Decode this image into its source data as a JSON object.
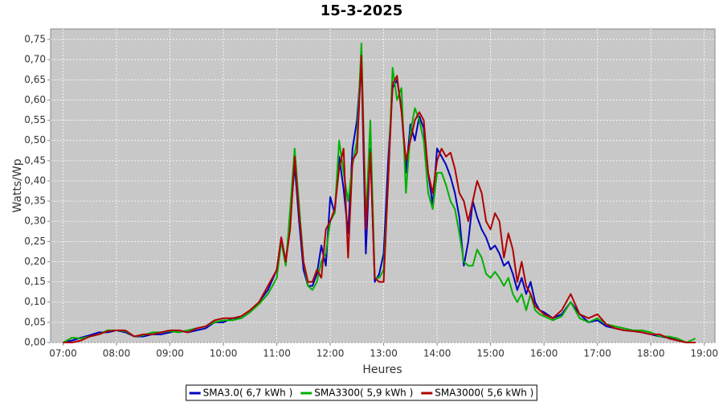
{
  "chart_data": {
    "type": "line",
    "title": "15-3-2025",
    "y_label": "Watts/Wp",
    "x_label": "Heures",
    "grid": true,
    "legend": "bottom",
    "xlim": [
      406,
      1152
    ],
    "ylim": [
      0,
      0.776
    ],
    "xticks": [
      {
        "value": 420,
        "label": "07:00"
      },
      {
        "value": 480,
        "label": "08:00"
      },
      {
        "value": 540,
        "label": "09:00"
      },
      {
        "value": 600,
        "label": "10:00"
      },
      {
        "value": 660,
        "label": "11:00"
      },
      {
        "value": 720,
        "label": "12:00"
      },
      {
        "value": 780,
        "label": "13:00"
      },
      {
        "value": 840,
        "label": "14:00"
      },
      {
        "value": 900,
        "label": "15:00"
      },
      {
        "value": 960,
        "label": "16:00"
      },
      {
        "value": 1020,
        "label": "17:00"
      },
      {
        "value": 1080,
        "label": "18:00"
      },
      {
        "value": 1140,
        "label": "19:00"
      }
    ],
    "yticks": [
      {
        "value": 0,
        "label": "0,00"
      },
      {
        "value": 0.05,
        "label": "0,05"
      },
      {
        "value": 0.1,
        "label": "0,10"
      },
      {
        "value": 0.15,
        "label": "0,15"
      },
      {
        "value": 0.2,
        "label": "0,20"
      },
      {
        "value": 0.25,
        "label": "0,25"
      },
      {
        "value": 0.3,
        "label": "0,30"
      },
      {
        "value": 0.35,
        "label": "0,35"
      },
      {
        "value": 0.4,
        "label": "0,40"
      },
      {
        "value": 0.45,
        "label": "0,45"
      },
      {
        "value": 0.5,
        "label": "0,50"
      },
      {
        "value": 0.55,
        "label": "0,55"
      },
      {
        "value": 0.6,
        "label": "0,60"
      },
      {
        "value": 0.65,
        "label": "0,65"
      },
      {
        "value": 0.7,
        "label": "0,70"
      },
      {
        "value": 0.75,
        "label": "0,75"
      }
    ],
    "x": [
      420,
      430,
      440,
      450,
      460,
      470,
      480,
      490,
      500,
      510,
      520,
      530,
      540,
      550,
      560,
      570,
      580,
      590,
      600,
      610,
      620,
      630,
      640,
      650,
      660,
      665,
      670,
      675,
      680,
      685,
      690,
      695,
      700,
      705,
      710,
      715,
      720,
      725,
      730,
      735,
      740,
      745,
      750,
      755,
      760,
      765,
      770,
      775,
      780,
      785,
      790,
      795,
      800,
      805,
      810,
      815,
      820,
      825,
      830,
      835,
      840,
      845,
      850,
      855,
      860,
      865,
      870,
      875,
      880,
      885,
      890,
      895,
      900,
      905,
      910,
      915,
      920,
      925,
      930,
      935,
      940,
      945,
      950,
      955,
      960,
      970,
      980,
      990,
      1000,
      1010,
      1020,
      1030,
      1040,
      1050,
      1060,
      1070,
      1080,
      1090,
      1100,
      1110,
      1120,
      1130
    ],
    "series": [
      {
        "name": "SMA3.0( 6,7 kWh )",
        "color": "#0000c0",
        "values": [
          0,
          0.005,
          0.012,
          0.018,
          0.025,
          0.025,
          0.03,
          0.025,
          0.015,
          0.015,
          0.02,
          0.02,
          0.025,
          0.03,
          0.025,
          0.03,
          0.035,
          0.05,
          0.05,
          0.06,
          0.06,
          0.075,
          0.1,
          0.13,
          0.18,
          0.26,
          0.2,
          0.3,
          0.44,
          0.3,
          0.18,
          0.14,
          0.14,
          0.17,
          0.24,
          0.19,
          0.36,
          0.32,
          0.46,
          0.38,
          0.27,
          0.48,
          0.55,
          0.7,
          0.22,
          0.48,
          0.15,
          0.17,
          0.22,
          0.45,
          0.63,
          0.65,
          0.58,
          0.42,
          0.54,
          0.5,
          0.56,
          0.53,
          0.42,
          0.34,
          0.48,
          0.46,
          0.44,
          0.41,
          0.37,
          0.31,
          0.19,
          0.25,
          0.35,
          0.31,
          0.28,
          0.26,
          0.23,
          0.24,
          0.22,
          0.19,
          0.2,
          0.17,
          0.13,
          0.16,
          0.12,
          0.15,
          0.1,
          0.08,
          0.075,
          0.06,
          0.07,
          0.1,
          0.07,
          0.05,
          0.055,
          0.04,
          0.035,
          0.03,
          0.028,
          0.025,
          0.02,
          0.015,
          0.012,
          0.005,
          0,
          0
        ]
      },
      {
        "name": "SMA3300( 5,9 kWh )",
        "color": "#00b000",
        "values": [
          0,
          0.012,
          0.01,
          0.015,
          0.02,
          0.03,
          0.03,
          0.028,
          0.015,
          0.018,
          0.025,
          0.025,
          0.028,
          0.025,
          0.03,
          0.035,
          0.04,
          0.05,
          0.055,
          0.055,
          0.06,
          0.075,
          0.095,
          0.12,
          0.16,
          0.25,
          0.19,
          0.33,
          0.48,
          0.34,
          0.2,
          0.14,
          0.13,
          0.15,
          0.2,
          0.22,
          0.3,
          0.32,
          0.5,
          0.42,
          0.35,
          0.44,
          0.5,
          0.74,
          0.3,
          0.55,
          0.16,
          0.16,
          0.18,
          0.4,
          0.68,
          0.6,
          0.63,
          0.37,
          0.52,
          0.58,
          0.55,
          0.5,
          0.37,
          0.33,
          0.42,
          0.42,
          0.39,
          0.35,
          0.33,
          0.27,
          0.2,
          0.19,
          0.19,
          0.23,
          0.21,
          0.17,
          0.16,
          0.175,
          0.16,
          0.14,
          0.16,
          0.12,
          0.1,
          0.12,
          0.08,
          0.12,
          0.08,
          0.07,
          0.065,
          0.055,
          0.065,
          0.1,
          0.06,
          0.05,
          0.06,
          0.045,
          0.04,
          0.035,
          0.03,
          0.03,
          0.025,
          0.015,
          0.015,
          0.01,
          0,
          0.01
        ]
      },
      {
        "name": "SMA3000( 5,6 kWh )",
        "color": "#b00000",
        "values": [
          0,
          0,
          0.005,
          0.015,
          0.02,
          0.028,
          0.03,
          0.03,
          0.015,
          0.02,
          0.02,
          0.025,
          0.03,
          0.03,
          0.025,
          0.035,
          0.04,
          0.055,
          0.06,
          0.06,
          0.065,
          0.08,
          0.1,
          0.14,
          0.18,
          0.26,
          0.2,
          0.28,
          0.46,
          0.32,
          0.2,
          0.15,
          0.15,
          0.18,
          0.16,
          0.28,
          0.3,
          0.33,
          0.43,
          0.48,
          0.21,
          0.45,
          0.47,
          0.71,
          0.28,
          0.47,
          0.16,
          0.15,
          0.15,
          0.4,
          0.64,
          0.66,
          0.57,
          0.45,
          0.5,
          0.55,
          0.57,
          0.55,
          0.42,
          0.37,
          0.45,
          0.48,
          0.46,
          0.47,
          0.43,
          0.37,
          0.35,
          0.3,
          0.35,
          0.4,
          0.37,
          0.3,
          0.28,
          0.32,
          0.3,
          0.21,
          0.27,
          0.23,
          0.15,
          0.2,
          0.14,
          0.12,
          0.09,
          0.08,
          0.07,
          0.06,
          0.08,
          0.12,
          0.07,
          0.06,
          0.07,
          0.045,
          0.035,
          0.03,
          0.028,
          0.025,
          0.02,
          0.02,
          0.01,
          0.005,
          0,
          0
        ]
      }
    ]
  }
}
